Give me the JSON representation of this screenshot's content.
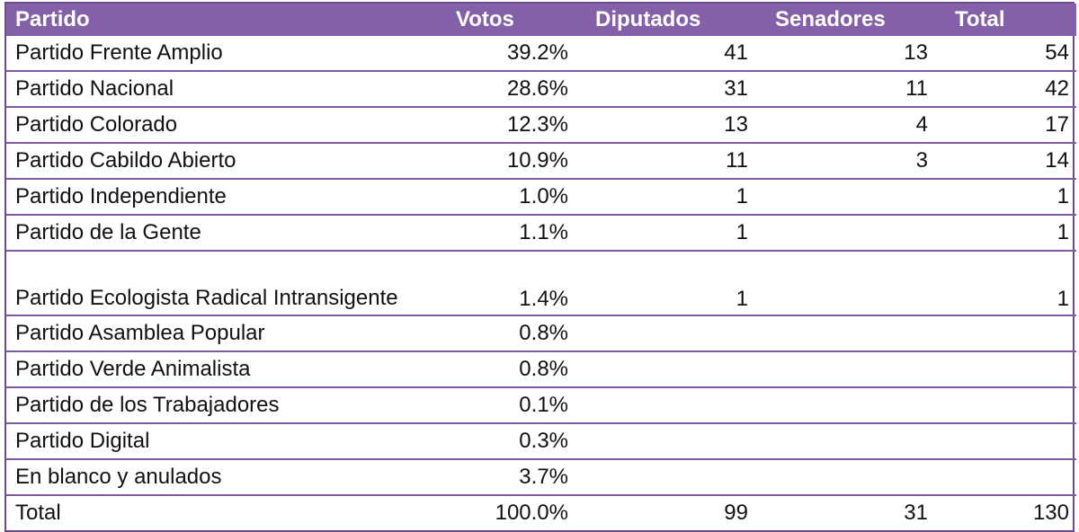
{
  "table": {
    "headers": {
      "partido": "Partido",
      "votos": "Votos",
      "diputados": "Diputados",
      "senadores": "Senadores",
      "total": "Total"
    },
    "rows": [
      {
        "partido": "Partido Frente Amplio",
        "votos": "39.2%",
        "diputados": "41",
        "senadores": "13",
        "total": "54"
      },
      {
        "partido": "Partido Nacional",
        "votos": "28.6%",
        "diputados": "31",
        "senadores": "11",
        "total": "42"
      },
      {
        "partido": "Partido Colorado",
        "votos": "12.3%",
        "diputados": "13",
        "senadores": "4",
        "total": "17"
      },
      {
        "partido": "Partido Cabildo Abierto",
        "votos": "10.9%",
        "diputados": "11",
        "senadores": "3",
        "total": "14"
      },
      {
        "partido": "Partido Independiente",
        "votos": "1.0%",
        "diputados": "1",
        "senadores": "",
        "total": "1"
      },
      {
        "partido": "Partido de la Gente",
        "votos": "1.1%",
        "diputados": "1",
        "senadores": "",
        "total": "1"
      },
      {
        "partido": "Partido Ecologista Radical Intransigente",
        "votos": "1.4%",
        "diputados": "1",
        "senadores": "",
        "total": "1"
      },
      {
        "partido": "Partido Asamblea Popular",
        "votos": "0.8%",
        "diputados": "",
        "senadores": "",
        "total": ""
      },
      {
        "partido": "Partido Verde Animalista",
        "votos": "0.8%",
        "diputados": "",
        "senadores": "",
        "total": ""
      },
      {
        "partido": "Partido de los Trabajadores",
        "votos": "0.1%",
        "diputados": "",
        "senadores": "",
        "total": ""
      },
      {
        "partido": "Partido Digital",
        "votos": "0.3%",
        "diputados": "",
        "senadores": "",
        "total": ""
      },
      {
        "partido": "En blanco y anulados",
        "votos": "3.7%",
        "diputados": "",
        "senadores": "",
        "total": ""
      },
      {
        "partido": "Total",
        "votos": "100.0%",
        "diputados": "99",
        "senadores": "31",
        "total": "130"
      }
    ]
  },
  "colors": {
    "header_bg": "#8460a8",
    "header_text": "#ffffff",
    "row_border": "#7a5a9c"
  }
}
